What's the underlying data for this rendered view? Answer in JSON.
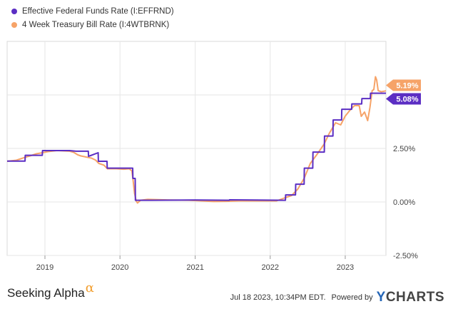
{
  "chart_data": {
    "type": "line",
    "series": [
      {
        "name": "Effective Federal Funds Rate (I:EFFRND)",
        "color": "#5b2ec3",
        "last_label": "5.08%",
        "points": [
          [
            "2018-07-01",
            1.91
          ],
          [
            "2018-09-26",
            1.91
          ],
          [
            "2018-09-27",
            2.18
          ],
          [
            "2018-12-19",
            2.18
          ],
          [
            "2018-12-20",
            2.4
          ],
          [
            "2019-05-01",
            2.4
          ],
          [
            "2019-06-01",
            2.37
          ],
          [
            "2019-07-31",
            2.37
          ],
          [
            "2019-08-01",
            2.13
          ],
          [
            "2019-09-17",
            2.3
          ],
          [
            "2019-09-18",
            1.9
          ],
          [
            "2019-10-30",
            1.9
          ],
          [
            "2019-10-31",
            1.58
          ],
          [
            "2020-03-03",
            1.58
          ],
          [
            "2020-03-04",
            1.1
          ],
          [
            "2020-03-15",
            1.1
          ],
          [
            "2020-03-16",
            0.08
          ],
          [
            "2020-06-01",
            0.08
          ],
          [
            "2021-01-01",
            0.09
          ],
          [
            "2021-06-16",
            0.08
          ],
          [
            "2021-06-17",
            0.1
          ],
          [
            "2022-03-16",
            0.08
          ],
          [
            "2022-03-17",
            0.33
          ],
          [
            "2022-05-04",
            0.33
          ],
          [
            "2022-05-05",
            0.83
          ],
          [
            "2022-06-15",
            0.83
          ],
          [
            "2022-06-16",
            1.58
          ],
          [
            "2022-07-27",
            1.58
          ],
          [
            "2022-07-28",
            2.33
          ],
          [
            "2022-09-21",
            2.33
          ],
          [
            "2022-09-22",
            3.08
          ],
          [
            "2022-11-02",
            3.08
          ],
          [
            "2022-11-03",
            3.83
          ],
          [
            "2022-12-14",
            3.83
          ],
          [
            "2022-12-15",
            4.33
          ],
          [
            "2023-02-01",
            4.33
          ],
          [
            "2023-02-02",
            4.58
          ],
          [
            "2023-03-22",
            4.58
          ],
          [
            "2023-03-23",
            4.83
          ],
          [
            "2023-05-03",
            4.83
          ],
          [
            "2023-05-04",
            5.08
          ],
          [
            "2023-07-18",
            5.08
          ]
        ]
      },
      {
        "name": "4 Week Treasury Bill Rate (I:4WTBRNK)",
        "color": "#f6a368",
        "last_label": "5.19%",
        "points": [
          [
            "2018-07-01",
            1.9
          ],
          [
            "2018-08-15",
            1.95
          ],
          [
            "2018-09-25",
            2.08
          ],
          [
            "2018-10-20",
            2.15
          ],
          [
            "2018-11-20",
            2.25
          ],
          [
            "2018-12-20",
            2.3
          ],
          [
            "2019-01-15",
            2.35
          ],
          [
            "2019-03-01",
            2.4
          ],
          [
            "2019-05-01",
            2.37
          ],
          [
            "2019-05-20",
            2.32
          ],
          [
            "2019-06-10",
            2.2
          ],
          [
            "2019-06-25",
            2.15
          ],
          [
            "2019-07-20",
            2.1
          ],
          [
            "2019-08-15",
            2.05
          ],
          [
            "2019-09-05",
            1.95
          ],
          [
            "2019-09-20",
            1.8
          ],
          [
            "2019-10-15",
            1.72
          ],
          [
            "2019-11-01",
            1.55
          ],
          [
            "2019-12-15",
            1.55
          ],
          [
            "2020-01-20",
            1.53
          ],
          [
            "2020-02-15",
            1.55
          ],
          [
            "2020-02-28",
            1.45
          ],
          [
            "2020-03-05",
            1.0
          ],
          [
            "2020-03-12",
            0.4
          ],
          [
            "2020-03-20",
            0.05
          ],
          [
            "2020-03-26",
            -0.05
          ],
          [
            "2020-04-10",
            0.08
          ],
          [
            "2020-05-15",
            0.12
          ],
          [
            "2020-07-01",
            0.11
          ],
          [
            "2020-09-01",
            0.09
          ],
          [
            "2020-12-01",
            0.08
          ],
          [
            "2021-02-01",
            0.05
          ],
          [
            "2021-04-01",
            0.02
          ],
          [
            "2021-06-01",
            0.03
          ],
          [
            "2021-08-01",
            0.05
          ],
          [
            "2021-10-01",
            0.05
          ],
          [
            "2021-12-01",
            0.05
          ],
          [
            "2022-02-01",
            0.05
          ],
          [
            "2022-03-15",
            0.2
          ],
          [
            "2022-04-15",
            0.3
          ],
          [
            "2022-05-15",
            0.6
          ],
          [
            "2022-06-15",
            1.1
          ],
          [
            "2022-07-15",
            1.8
          ],
          [
            "2022-08-15",
            2.2
          ],
          [
            "2022-09-20",
            2.7
          ],
          [
            "2022-10-15",
            3.2
          ],
          [
            "2022-11-15",
            3.7
          ],
          [
            "2022-12-10",
            3.6
          ],
          [
            "2022-12-31",
            4.0
          ],
          [
            "2023-01-25",
            4.3
          ],
          [
            "2023-02-15",
            4.5
          ],
          [
            "2023-03-10",
            4.5
          ],
          [
            "2023-03-20",
            4.0
          ],
          [
            "2023-04-05",
            4.2
          ],
          [
            "2023-04-20",
            3.8
          ],
          [
            "2023-05-01",
            4.4
          ],
          [
            "2023-05-12",
            5.2
          ],
          [
            "2023-05-20",
            5.25
          ],
          [
            "2023-05-28",
            5.85
          ],
          [
            "2023-06-03",
            5.7
          ],
          [
            "2023-06-10",
            5.2
          ],
          [
            "2023-06-25",
            5.15
          ],
          [
            "2023-07-18",
            5.19
          ]
        ]
      }
    ],
    "x_ticks": [
      "2019",
      "2020",
      "2021",
      "2022",
      "2023"
    ],
    "y_ticks": [
      "2.50%",
      "0.00%",
      "-2.50%"
    ],
    "y_tick_values": [
      2.5,
      0,
      -2.5
    ],
    "ylim": [
      -2.5,
      7.5
    ],
    "xlim": [
      "2018-07-01",
      "2023-07-18"
    ],
    "grid": true,
    "legend_position": "top-left"
  },
  "footer": {
    "brand": "Seeking Alpha",
    "brand_symbol": "α",
    "timestamp": "Jul 18 2023, 10:34PM EDT.",
    "powered_by": "Powered by",
    "ycharts_y": "Y",
    "ycharts_rest": "CHARTS"
  }
}
